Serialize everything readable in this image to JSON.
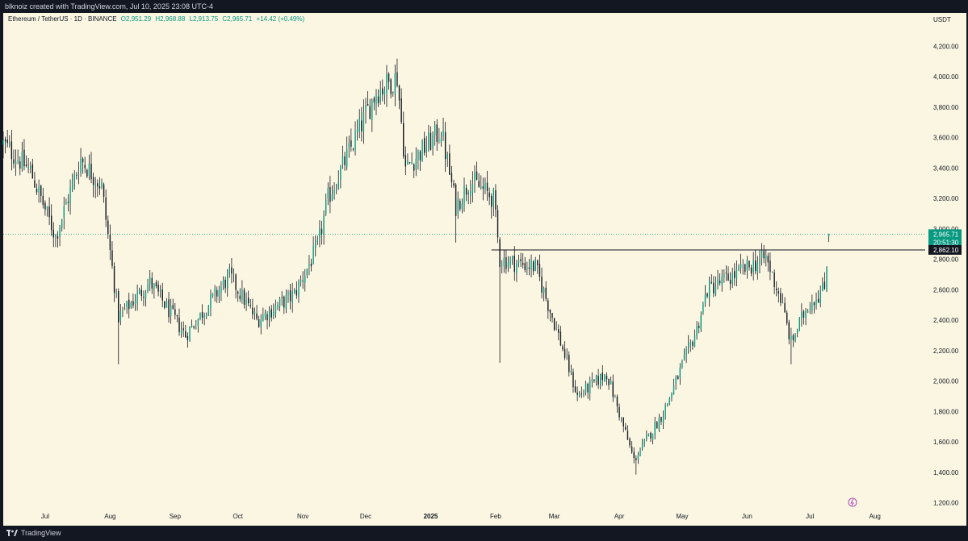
{
  "header": {
    "attribution": "blknoiz created with TradingView.com, Jul 10, 2025 23:08 UTC-4"
  },
  "legend": {
    "symbol": "Ethereum / TetherUS · 1D · BINANCE",
    "open": "O2,951.29",
    "high": "H2,968.88",
    "low": "L2,913.75",
    "close": "C2,965.71",
    "change": "+14.42 (+0.49%)"
  },
  "footer": {
    "brand": "TradingView"
  },
  "colors": {
    "up": "#089981",
    "down": "#131722",
    "wick": "#131722",
    "background": "#faf6e2"
  },
  "chart_data": {
    "type": "candlestick",
    "currency_label": "USDT",
    "y_ticks": [
      "4,200.00",
      "4,000.00",
      "3,800.00",
      "3,600.00",
      "3,400.00",
      "3,200.00",
      "3,000.00",
      "2,800.00",
      "2,600.00",
      "2,400.00",
      "2,200.00",
      "2,000.00",
      "1,800.00",
      "1,600.00",
      "1,400.00",
      "1,200.00"
    ],
    "y_tick_values": [
      4200,
      4000,
      3800,
      3600,
      3400,
      3200,
      3000,
      2800,
      2600,
      2400,
      2200,
      2000,
      1800,
      1600,
      1400,
      1200
    ],
    "ylim": [
      1150,
      4420
    ],
    "x_ticks": [
      {
        "label": "Jul",
        "date": "2024-07-01",
        "bold": false
      },
      {
        "label": "Aug",
        "date": "2024-08-01",
        "bold": false
      },
      {
        "label": "Sep",
        "date": "2024-09-01",
        "bold": false
      },
      {
        "label": "Oct",
        "date": "2024-10-01",
        "bold": false
      },
      {
        "label": "Nov",
        "date": "2024-11-01",
        "bold": false
      },
      {
        "label": "Dec",
        "date": "2024-12-01",
        "bold": false
      },
      {
        "label": "2025",
        "date": "2025-01-01",
        "bold": true
      },
      {
        "label": "Feb",
        "date": "2025-02-01",
        "bold": false
      },
      {
        "label": "Mar",
        "date": "2025-03-01",
        "bold": false
      },
      {
        "label": "Apr",
        "date": "2025-04-01",
        "bold": false
      },
      {
        "label": "May",
        "date": "2025-05-01",
        "bold": false
      },
      {
        "label": "Jun",
        "date": "2025-06-01",
        "bold": false
      },
      {
        "label": "Jul",
        "date": "2025-07-01",
        "bold": false
      },
      {
        "label": "Aug",
        "date": "2025-08-01",
        "bold": false
      }
    ],
    "x_range": [
      "2024-06-11",
      "2025-08-25"
    ],
    "key_points": [
      {
        "date": "2024-06-11",
        "close": 3560
      },
      {
        "date": "2024-06-24",
        "close": 3380
      },
      {
        "date": "2024-07-06",
        "close": 2950
      },
      {
        "date": "2024-07-18",
        "close": 3460
      },
      {
        "date": "2024-07-28",
        "close": 3280
      },
      {
        "date": "2024-08-05",
        "close": 2420
      },
      {
        "date": "2024-08-20",
        "close": 2650
      },
      {
        "date": "2024-09-06",
        "close": 2300
      },
      {
        "date": "2024-09-27",
        "close": 2690
      },
      {
        "date": "2024-10-10",
        "close": 2400
      },
      {
        "date": "2024-10-28",
        "close": 2570
      },
      {
        "date": "2024-11-08",
        "close": 2880
      },
      {
        "date": "2024-11-13",
        "close": 3200
      },
      {
        "date": "2024-12-06",
        "close": 3900
      },
      {
        "date": "2024-12-16",
        "close": 4000
      },
      {
        "date": "2024-12-20",
        "close": 3400
      },
      {
        "date": "2025-01-06",
        "close": 3650
      },
      {
        "date": "2025-01-13",
        "close": 3150
      },
      {
        "date": "2025-01-20",
        "close": 3320
      },
      {
        "date": "2025-01-31",
        "close": 3200
      },
      {
        "date": "2025-02-03",
        "close": 2800
      },
      {
        "date": "2025-02-20",
        "close": 2750
      },
      {
        "date": "2025-03-03",
        "close": 2300
      },
      {
        "date": "2025-03-12",
        "close": 1900
      },
      {
        "date": "2025-03-26",
        "close": 2050
      },
      {
        "date": "2025-04-08",
        "close": 1480
      },
      {
        "date": "2025-04-22",
        "close": 1790
      },
      {
        "date": "2025-05-08",
        "close": 2340
      },
      {
        "date": "2025-05-13",
        "close": 2600
      },
      {
        "date": "2025-06-10",
        "close": 2810
      },
      {
        "date": "2025-06-17",
        "close": 2540
      },
      {
        "date": "2025-06-22",
        "close": 2250
      },
      {
        "date": "2025-06-30",
        "close": 2500
      },
      {
        "date": "2025-07-08",
        "close": 2610
      },
      {
        "date": "2025-07-10",
        "close": 2965
      }
    ],
    "extreme_wicks": [
      {
        "date": "2024-08-05",
        "low": 2110
      },
      {
        "date": "2025-02-03",
        "low": 2120
      },
      {
        "date": "2025-01-13",
        "low": 2910
      },
      {
        "date": "2025-04-09",
        "low": 1385
      },
      {
        "date": "2025-06-22",
        "low": 2110
      },
      {
        "date": "2024-12-16",
        "high": 4110
      }
    ],
    "last_candle": {
      "date": "2025-07-10",
      "open": 2951.29,
      "high": 2968.88,
      "low": 2913.75,
      "close": 2965.71
    },
    "current_price": {
      "value": 2965.71,
      "label": "2,965.71",
      "countdown": "20:51:30"
    },
    "horizontal_line": {
      "value": 2862.1,
      "label": "2,862.10",
      "start_date": "2025-01-30"
    }
  }
}
